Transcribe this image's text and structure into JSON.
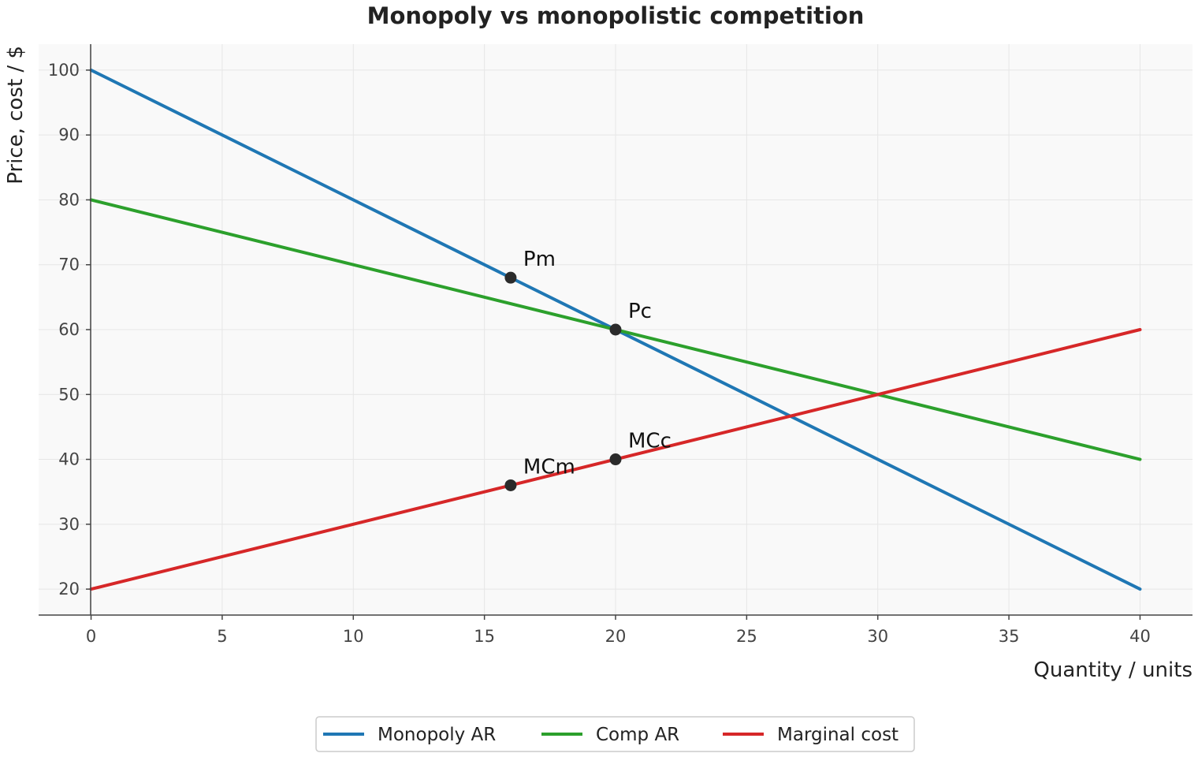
{
  "chart_data": {
    "type": "line",
    "title": "Monopoly vs monopolistic competition",
    "xlabel": "Quantity / units",
    "ylabel": "Price, cost / $",
    "xlim": [
      -2,
      42
    ],
    "ylim": [
      16,
      104
    ],
    "x_ticks": [
      0,
      5,
      10,
      15,
      20,
      25,
      30,
      35,
      40
    ],
    "y_ticks": [
      20,
      30,
      40,
      50,
      60,
      70,
      80,
      90,
      100
    ],
    "grid": true,
    "legend_position": "bottom-center",
    "series": [
      {
        "name": "Monopoly AR",
        "color": "#1f77b4",
        "x": [
          0,
          40
        ],
        "y": [
          100,
          20
        ]
      },
      {
        "name": "Comp AR",
        "color": "#2ca02c",
        "x": [
          0,
          40
        ],
        "y": [
          80,
          40
        ]
      },
      {
        "name": "Marginal cost",
        "color": "#d62728",
        "x": [
          0,
          40
        ],
        "y": [
          20,
          60
        ]
      }
    ],
    "points": [
      {
        "label": "Pm",
        "x": 16,
        "y": 68
      },
      {
        "label": "Pc",
        "x": 20,
        "y": 60
      },
      {
        "label": "MCm",
        "x": 16,
        "y": 36
      },
      {
        "label": "MCc",
        "x": 20,
        "y": 40
      }
    ],
    "colors": {
      "plot_background": "#f9f9f9",
      "grid": "#e6e6e6",
      "axis": "#444444",
      "marker": "#2b2b2b"
    }
  }
}
